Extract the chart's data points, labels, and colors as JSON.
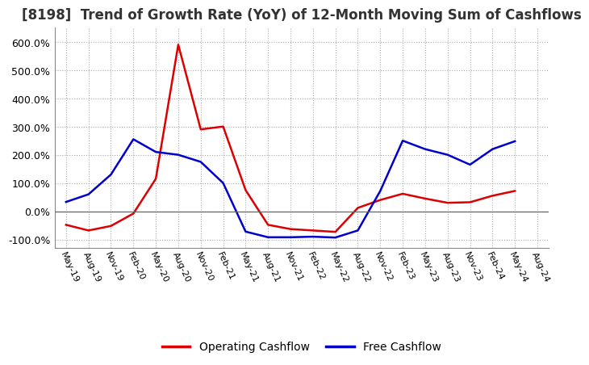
{
  "title": "[8198]  Trend of Growth Rate (YoY) of 12-Month Moving Sum of Cashflows",
  "title_fontsize": 12,
  "ylim": [
    -130,
    650
  ],
  "yticks": [
    -100,
    0,
    100,
    200,
    300,
    400,
    500,
    600
  ],
  "background_color": "#ffffff",
  "grid_color": "#aaaaaa",
  "operating_color": "#dd0000",
  "free_color": "#0000cc",
  "legend_labels": [
    "Operating Cashflow",
    "Free Cashflow"
  ],
  "x_labels": [
    "May-19",
    "Aug-19",
    "Nov-19",
    "Feb-20",
    "May-20",
    "Aug-20",
    "Nov-20",
    "Feb-21",
    "May-21",
    "Aug-21",
    "Nov-21",
    "Feb-22",
    "May-22",
    "Aug-22",
    "Nov-22",
    "Feb-23",
    "May-23",
    "Aug-23",
    "Nov-23",
    "Feb-24",
    "May-24",
    "Aug-24"
  ],
  "operating_cashflow": [
    -48,
    -68,
    -52,
    -8,
    115,
    590,
    290,
    300,
    75,
    -48,
    -63,
    -68,
    -73,
    12,
    40,
    62,
    45,
    30,
    32,
    55,
    72,
    null
  ],
  "free_cashflow": [
    33,
    60,
    130,
    255,
    210,
    200,
    175,
    100,
    -72,
    -92,
    -92,
    -90,
    -93,
    -68,
    72,
    250,
    220,
    200,
    165,
    220,
    248,
    null
  ]
}
